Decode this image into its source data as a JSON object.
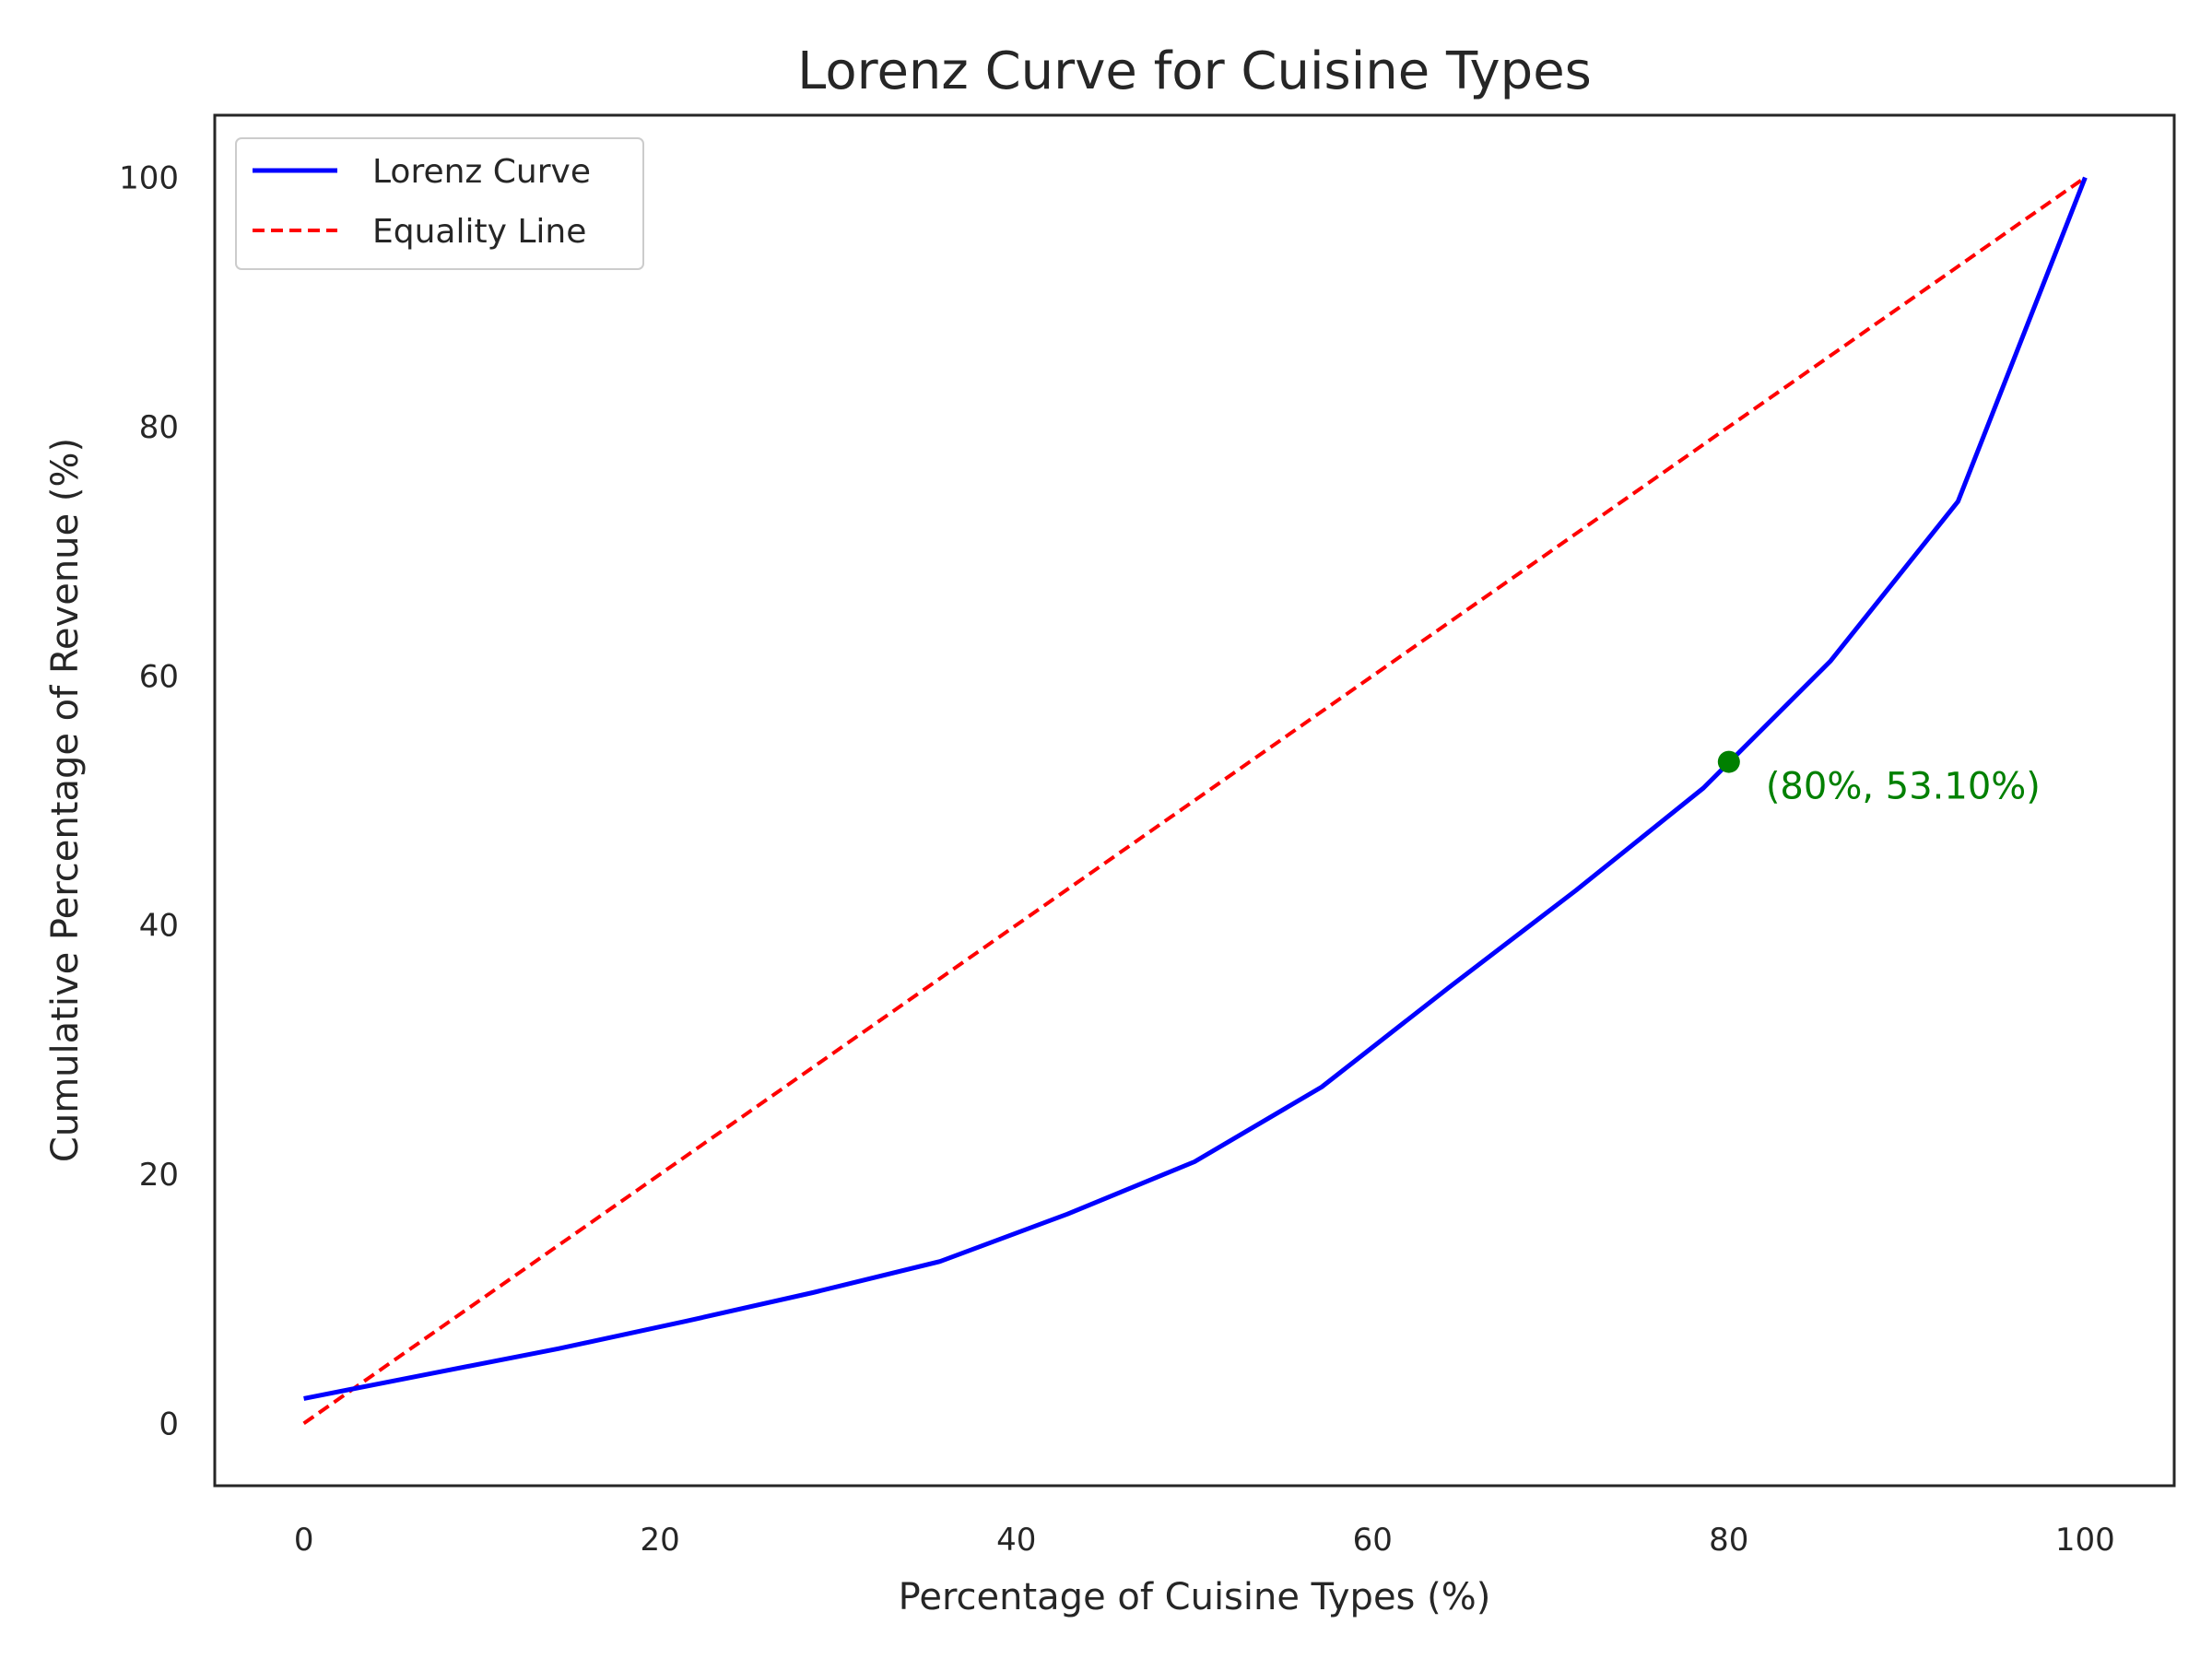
{
  "chart_data": {
    "type": "line",
    "title": "Lorenz Curve for Cuisine Types",
    "xlabel": "Percentage of Cuisine Types (%)",
    "ylabel": "Cumulative Percentage of Revenue (%)",
    "xlim": [
      -5,
      105
    ],
    "ylim": [
      -5,
      105
    ],
    "xticks": [
      "0",
      "20",
      "40",
      "60",
      "80",
      "100"
    ],
    "yticks": [
      "0",
      "20",
      "40",
      "60",
      "80",
      "100"
    ],
    "grid": false,
    "legend_position": "top-left",
    "series": [
      {
        "name": "Lorenz Curve",
        "color": "#0000ff",
        "style": "solid",
        "x": [
          0,
          7.14,
          14.29,
          21.43,
          28.57,
          35.71,
          42.86,
          50.0,
          57.14,
          64.29,
          71.43,
          78.57,
          85.71,
          92.86,
          100
        ],
        "y": [
          2.0,
          4.0,
          6.0,
          8.2,
          10.5,
          13.0,
          16.8,
          21.0,
          27.0,
          35.0,
          42.8,
          51.0,
          61.2,
          74.0,
          100
        ]
      },
      {
        "name": "Equality Line",
        "color": "#ff0000",
        "style": "dashed",
        "x": [
          0,
          100
        ],
        "y": [
          0,
          100
        ]
      }
    ],
    "annotation": {
      "text": "(80%, 53.10%)",
      "x": 80,
      "y": 53.1,
      "color": "#008000"
    }
  }
}
